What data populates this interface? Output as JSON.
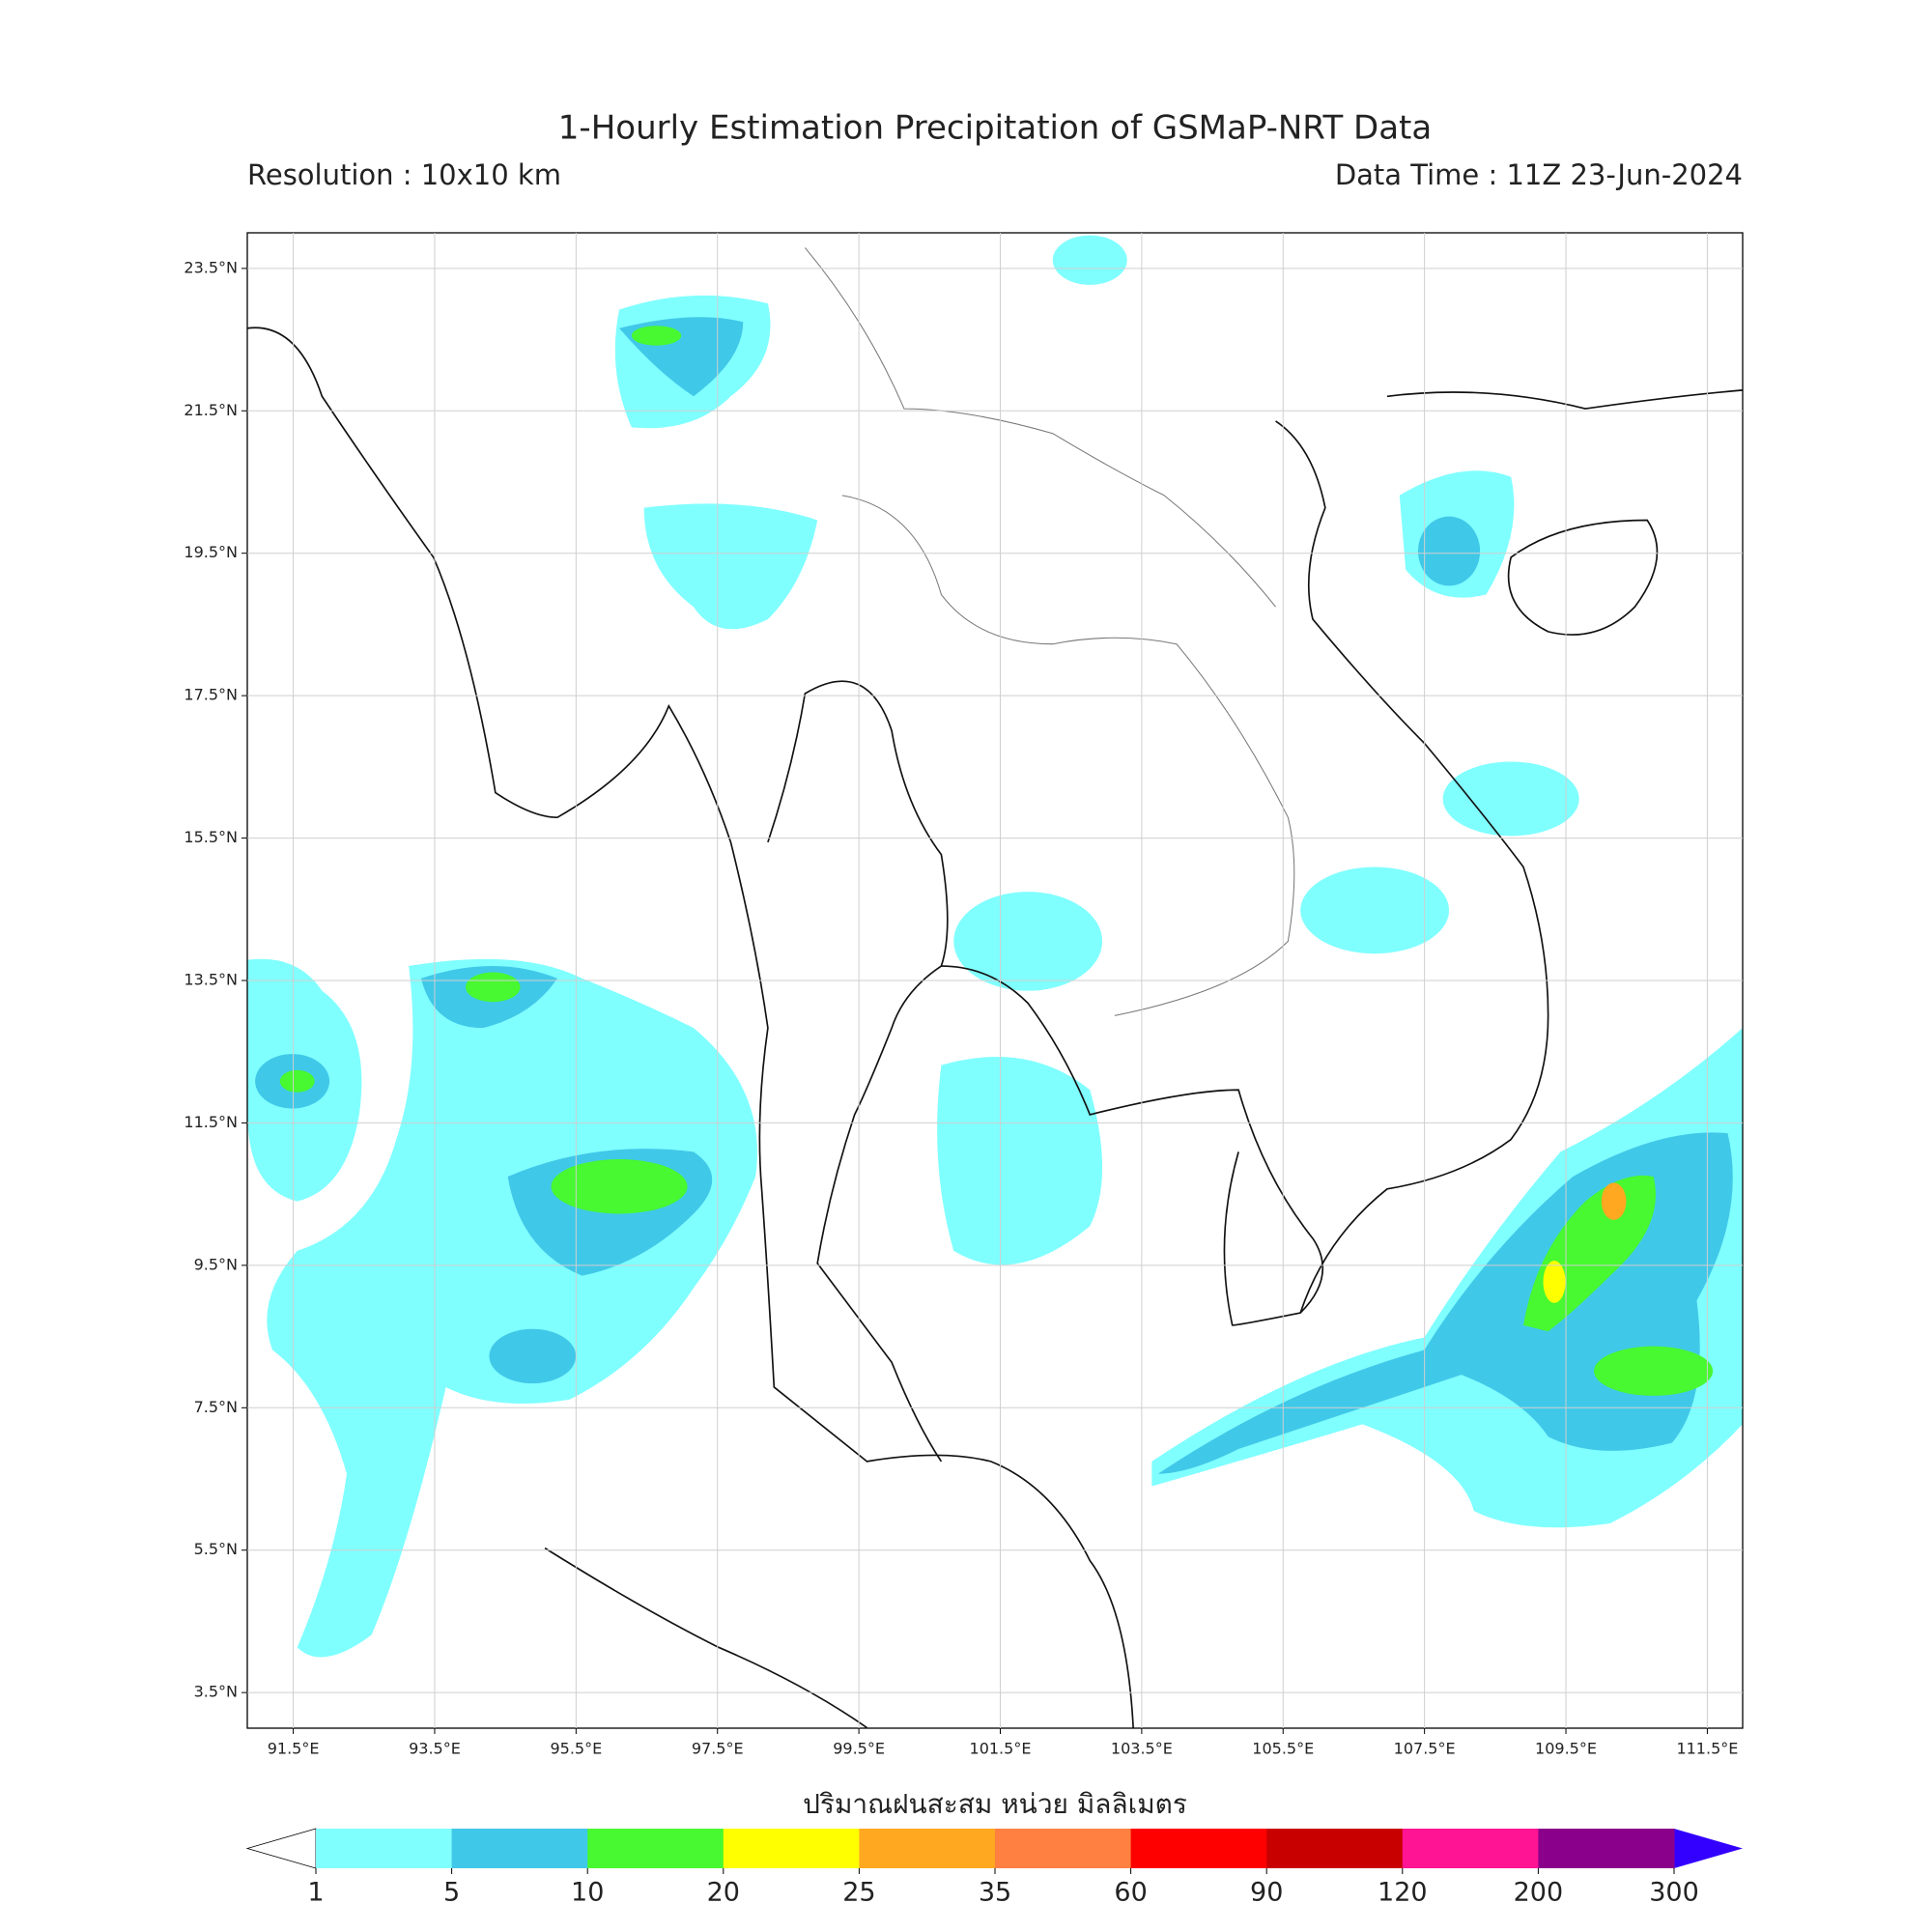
{
  "header": {
    "title": "1-Hourly Estimation Precipitation of GSMaP-NRT Data",
    "resolution": "Resolution : 10x10 km",
    "data_time": "Data Time : 11Z 23-Jun-2024"
  },
  "map": {
    "xlim": [
      90.85,
      112
    ],
    "ylim": [
      3,
      24
    ],
    "xticks": [
      {
        "value": 91.5,
        "label": "91.5°E"
      },
      {
        "value": 93.5,
        "label": "93.5°E"
      },
      {
        "value": 95.5,
        "label": "95.5°E"
      },
      {
        "value": 97.5,
        "label": "97.5°E"
      },
      {
        "value": 99.5,
        "label": "99.5°E"
      },
      {
        "value": 101.5,
        "label": "101.5°E"
      },
      {
        "value": 103.5,
        "label": "103.5°E"
      },
      {
        "value": 105.5,
        "label": "105.5°E"
      },
      {
        "value": 107.5,
        "label": "107.5°E"
      },
      {
        "value": 109.5,
        "label": "109.5°E"
      },
      {
        "value": 111.5,
        "label": "111.5°E"
      }
    ],
    "yticks": [
      {
        "value": 3.5,
        "label": "3.5°N"
      },
      {
        "value": 5.5,
        "label": "5.5°N"
      },
      {
        "value": 7.5,
        "label": "7.5°N"
      },
      {
        "value": 9.5,
        "label": "9.5°N"
      },
      {
        "value": 11.5,
        "label": "11.5°N"
      },
      {
        "value": 13.5,
        "label": "13.5°N"
      },
      {
        "value": 15.5,
        "label": "15.5°N"
      },
      {
        "value": 17.5,
        "label": "17.5°N"
      },
      {
        "value": 19.5,
        "label": "19.5°N"
      },
      {
        "value": 21.5,
        "label": "21.5°N"
      },
      {
        "value": 23.5,
        "label": "23.5°N"
      }
    ],
    "grid": true
  },
  "colorbar": {
    "label": "ปริมาณฝนสะสม หน่วย มิลลิเมตร",
    "levels": [
      1,
      5,
      10,
      20,
      25,
      35,
      60,
      90,
      120,
      200,
      300
    ],
    "colors": [
      "#80ffff",
      "#40c8e8",
      "#48f830",
      "#ffff00",
      "#ffa820",
      "#ff8040",
      "#ff0000",
      "#c80000",
      "#ff1493",
      "#8b008b"
    ],
    "under_color": "#ffffff",
    "over_color": "#3300ff"
  }
}
